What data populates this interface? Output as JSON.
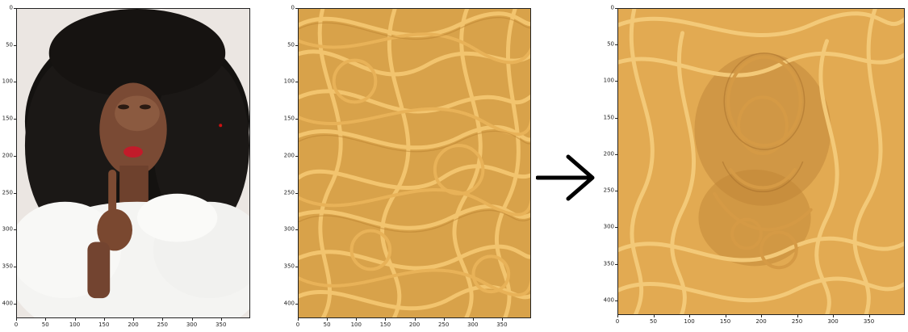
{
  "figure": {
    "panels": [
      {
        "id": "content-image",
        "yticks": [
          "0",
          "50",
          "100",
          "150",
          "200",
          "250",
          "300",
          "350",
          "400"
        ],
        "xticks": [
          "0",
          "50",
          "100",
          "150",
          "200",
          "250",
          "300",
          "350"
        ]
      },
      {
        "id": "style-image",
        "yticks": [
          "0",
          "50",
          "100",
          "150",
          "200",
          "250",
          "300",
          "350",
          "400"
        ],
        "xticks": [
          "0",
          "50",
          "100",
          "150",
          "200",
          "250",
          "300",
          "350"
        ]
      },
      {
        "id": "stylized-output",
        "yticks": [
          "0",
          "50",
          "100",
          "150",
          "200",
          "250",
          "300",
          "350",
          "400"
        ],
        "xticks": [
          "0",
          "50",
          "100",
          "150",
          "200",
          "250",
          "300",
          "350"
        ]
      }
    ],
    "arrow_icon": "right-arrow-icon"
  }
}
